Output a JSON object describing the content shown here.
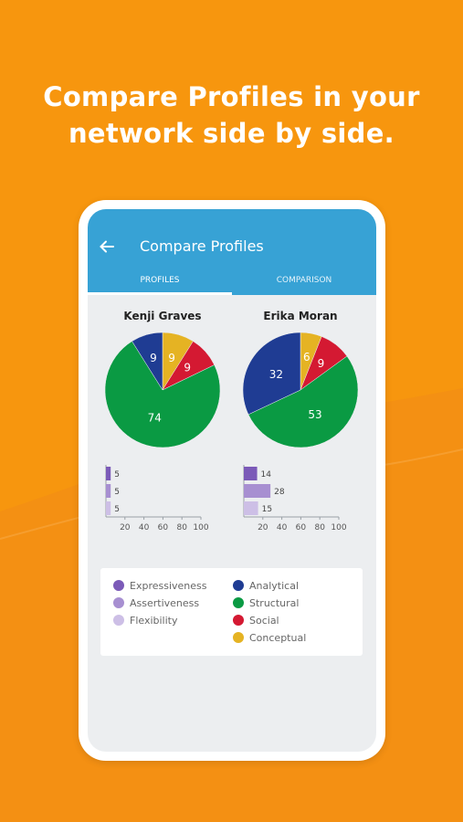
{
  "headline": {
    "line1": "Compare Profiles in your",
    "line2": "network side by side."
  },
  "appbar": {
    "title": "Compare Profiles"
  },
  "tabs": [
    {
      "label": "PROFILES",
      "active": true
    },
    {
      "label": "COMPARISON",
      "active": false
    }
  ],
  "colors": {
    "background": "#F7960E",
    "appbar": "#37A2D5",
    "expressiveness": "#7B5AB8",
    "assertiveness": "#A78FD1",
    "flexibility": "#CDBFE6",
    "analytical": "#1F3C93",
    "structural": "#0A9A43",
    "social": "#D41932",
    "conceptual": "#E5B323"
  },
  "legend": [
    {
      "label": "Expressiveness",
      "color": "#7B5AB8"
    },
    {
      "label": "Assertiveness",
      "color": "#A78FD1"
    },
    {
      "label": "Flexibility",
      "color": "#CDBFE6"
    },
    {
      "label": "Analytical",
      "color": "#1F3C93"
    },
    {
      "label": "Structural",
      "color": "#0A9A43"
    },
    {
      "label": "Social",
      "color": "#D41932"
    },
    {
      "label": "Conceptual",
      "color": "#E5B323"
    }
  ],
  "profiles": [
    {
      "name": "Kenji Graves"
    },
    {
      "name": "Erika Moran"
    }
  ],
  "chart_data": [
    {
      "type": "pie",
      "title": "Kenji Graves",
      "categories": [
        "Conceptual",
        "Social",
        "Structural",
        "Analytical"
      ],
      "values": [
        9,
        9,
        74,
        9
      ],
      "labels": [
        "9",
        "9",
        "74",
        "9"
      ]
    },
    {
      "type": "bar",
      "orientation": "horizontal",
      "categories": [
        "Expressiveness",
        "Assertiveness",
        "Flexibility"
      ],
      "values": [
        5,
        5,
        5
      ],
      "labels": [
        "5",
        "5",
        "5"
      ],
      "xlim": [
        0,
        100
      ],
      "xticks": [
        "20",
        "40",
        "60",
        "80",
        "100"
      ]
    },
    {
      "type": "pie",
      "title": "Erika Moran",
      "categories": [
        "Conceptual",
        "Social",
        "Structural",
        "Analytical"
      ],
      "values": [
        6,
        9,
        53,
        32
      ],
      "labels": [
        "6",
        "9",
        "53",
        "32"
      ]
    },
    {
      "type": "bar",
      "orientation": "horizontal",
      "categories": [
        "Expressiveness",
        "Assertiveness",
        "Flexibility"
      ],
      "values": [
        14,
        28,
        15
      ],
      "labels": [
        "14",
        "28",
        "15"
      ],
      "xlim": [
        0,
        100
      ],
      "xticks": [
        "20",
        "40",
        "60",
        "80",
        "100"
      ]
    }
  ]
}
